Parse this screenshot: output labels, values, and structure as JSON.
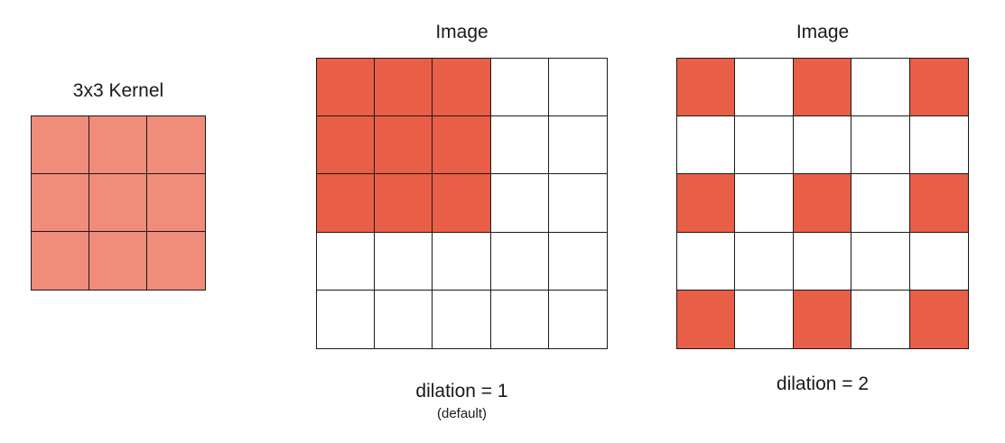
{
  "colors": {
    "kernel_cell": "#ef8c7a",
    "active_cell": "#e85e46",
    "empty_cell": "#ffffff"
  },
  "kernel": {
    "title": "3x3 Kernel",
    "size": 3
  },
  "panels": [
    {
      "title": "Image",
      "caption": "dilation = 1",
      "subcaption": "(default)",
      "grid_size": 5,
      "active_cells": [
        [
          0,
          0
        ],
        [
          0,
          1
        ],
        [
          0,
          2
        ],
        [
          1,
          0
        ],
        [
          1,
          1
        ],
        [
          1,
          2
        ],
        [
          2,
          0
        ],
        [
          2,
          1
        ],
        [
          2,
          2
        ]
      ]
    },
    {
      "title": "Image",
      "caption": "dilation = 2",
      "grid_size": 5,
      "active_cells": [
        [
          0,
          0
        ],
        [
          0,
          2
        ],
        [
          0,
          4
        ],
        [
          2,
          0
        ],
        [
          2,
          2
        ],
        [
          2,
          4
        ],
        [
          4,
          0
        ],
        [
          4,
          2
        ],
        [
          4,
          4
        ]
      ]
    }
  ]
}
